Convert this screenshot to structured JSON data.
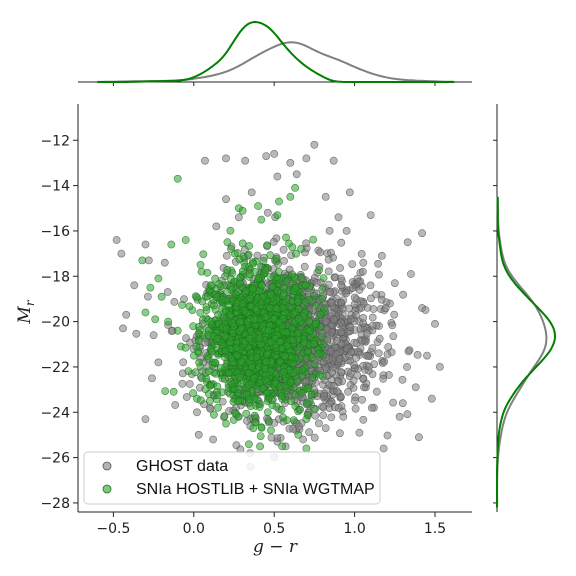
{
  "chart_data": {
    "type": "scatter",
    "title": "",
    "xlabel": "g − r",
    "ylabel": "M_r",
    "xlim": [
      -0.72,
      1.73
    ],
    "ylim": [
      -28.4,
      -10.4
    ],
    "x_ticks": [
      -0.5,
      0.0,
      0.5,
      1.0,
      1.5
    ],
    "x_tick_labels": [
      "−0.5",
      "0.0",
      "0.5",
      "1.0",
      "1.5"
    ],
    "y_ticks": [
      -12,
      -14,
      -16,
      -18,
      -20,
      -22,
      -24,
      -26,
      -28
    ],
    "y_tick_labels": [
      "−12",
      "−14",
      "−16",
      "−18",
      "−20",
      "−22",
      "−24",
      "−26",
      "−28"
    ],
    "grid": false,
    "legend_position": "lower-left",
    "marginals": {
      "top": "kde of g − r",
      "right": "kde of M_r"
    },
    "series": [
      {
        "name": "GHOST data",
        "color": "#7f7f7f",
        "edge_color": "#555555",
        "points": [
          [
            -0.3,
            -16.6
          ],
          [
            -0.45,
            -17.0
          ],
          [
            -0.42,
            -19.7
          ],
          [
            -0.3,
            -24.3
          ],
          [
            -0.44,
            -20.3
          ],
          [
            -0.25,
            -20.6
          ],
          [
            -0.26,
            -22.5
          ],
          [
            -0.37,
            -18.4
          ],
          [
            -0.48,
            -16.4
          ],
          [
            -0.18,
            -17.4
          ],
          [
            -0.28,
            -17.3
          ],
          [
            -0.22,
            -21.8
          ],
          [
            0.07,
            -12.9
          ],
          [
            0.2,
            -12.8
          ],
          [
            0.32,
            -12.9
          ],
          [
            0.45,
            -12.7
          ],
          [
            0.6,
            -13.0
          ],
          [
            0.7,
            -12.8
          ],
          [
            0.87,
            -12.9
          ],
          [
            0.75,
            -12.2
          ],
          [
            0.5,
            -12.6
          ],
          [
            0.97,
            -14.3
          ],
          [
            1.1,
            -15.3
          ],
          [
            0.52,
            -13.6
          ],
          [
            0.64,
            -13.5
          ],
          [
            1.17,
            -17.1
          ],
          [
            1.35,
            -17.9
          ],
          [
            1.42,
            -19.4
          ],
          [
            1.5,
            -20.1
          ],
          [
            1.45,
            -21.5
          ],
          [
            1.53,
            -22.0
          ],
          [
            1.48,
            -23.4
          ],
          [
            1.28,
            -24.2
          ],
          [
            1.4,
            -25.1
          ],
          [
            1.18,
            -25.6
          ],
          [
            1.33,
            -16.5
          ],
          [
            1.42,
            -16.1
          ],
          [
            1.25,
            -18.3
          ],
          [
            1.38,
            -22.9
          ],
          [
            1.3,
            -23.6
          ],
          [
            0.02,
            -24.0
          ],
          [
            0.1,
            -23.8
          ],
          [
            0.12,
            -25.2
          ],
          [
            0.35,
            -25.8
          ],
          [
            0.52,
            -25.3
          ],
          [
            0.68,
            -25.2
          ],
          [
            0.82,
            -24.7
          ],
          [
            0.93,
            -24.2
          ],
          [
            1.03,
            -24.9
          ],
          [
            1.12,
            -23.8
          ],
          [
            0.2,
            -14.6
          ],
          [
            0.36,
            -14.3
          ],
          [
            0.82,
            -14.5
          ],
          [
            0.9,
            -15.4
          ],
          [
            0.95,
            -16.0
          ],
          [
            0.28,
            -15.4
          ],
          [
            0.14,
            -15.8
          ],
          [
            0.46,
            -15.2
          ],
          [
            1.22,
            -19.2
          ],
          [
            1.15,
            -21.4
          ]
        ],
        "cluster": {
          "center_x": 0.62,
          "center_y": -20.8,
          "spread_x": 0.26,
          "spread_y": 1.65,
          "count": 1500
        }
      },
      {
        "name": "SNIa HOSTLIB + SNIa WGTMAP",
        "color": "#2ca02c",
        "edge_color": "#1f6f1f",
        "points": [
          [
            -0.1,
            -13.7
          ],
          [
            0.4,
            -14.9
          ],
          [
            0.52,
            -15.3
          ],
          [
            0.6,
            -14.5
          ],
          [
            0.63,
            -14.1
          ],
          [
            0.28,
            -15.0
          ],
          [
            0.42,
            -15.5
          ],
          [
            0.53,
            -14.7
          ],
          [
            -0.32,
            -17.3
          ],
          [
            -0.27,
            -18.5
          ],
          [
            -0.22,
            -18.1
          ],
          [
            -0.3,
            -19.6
          ],
          [
            -0.24,
            -19.9
          ],
          [
            -0.16,
            -20.0
          ],
          [
            -0.2,
            -18.9
          ],
          [
            -0.14,
            -16.6
          ],
          [
            -0.05,
            -16.4
          ],
          [
            -0.1,
            -20.4
          ],
          [
            -0.08,
            -21.1
          ],
          [
            0.0,
            -21.5
          ],
          [
            0.05,
            -22.5
          ],
          [
            0.02,
            -23.4
          ],
          [
            0.1,
            -23.5
          ],
          [
            0.15,
            -23.8
          ],
          [
            0.2,
            -24.5
          ],
          [
            0.28,
            -24.2
          ],
          [
            0.37,
            -24.7
          ],
          [
            0.46,
            -24.0
          ],
          [
            0.48,
            -24.8
          ],
          [
            0.55,
            -25.5
          ],
          [
            0.65,
            -25.0
          ],
          [
            0.7,
            -24.3
          ],
          [
            0.75,
            -23.2
          ],
          [
            0.7,
            -25.6
          ],
          [
            0.12,
            -21.8
          ],
          [
            0.06,
            -20.6
          ]
        ],
        "cluster": {
          "center_x": 0.4,
          "center_y": -20.6,
          "spread_x": 0.17,
          "spread_y": 1.45,
          "max_x": 0.82,
          "count": 1400
        }
      }
    ]
  }
}
